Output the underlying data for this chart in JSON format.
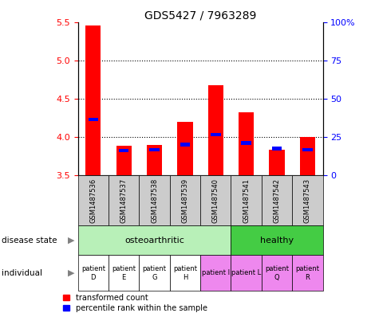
{
  "title": "GDS5427 / 7963289",
  "samples": [
    "GSM1487536",
    "GSM1487537",
    "GSM1487538",
    "GSM1487539",
    "GSM1487540",
    "GSM1487541",
    "GSM1487542",
    "GSM1487543"
  ],
  "red_values": [
    5.45,
    3.88,
    3.9,
    4.2,
    4.67,
    4.32,
    3.83,
    4.0
  ],
  "blue_values": [
    4.23,
    3.82,
    3.83,
    3.9,
    4.03,
    3.92,
    3.85,
    3.83
  ],
  "ymin": 3.5,
  "ymax": 5.5,
  "y_left_ticks": [
    3.5,
    4.0,
    4.5,
    5.0,
    5.5
  ],
  "y_right_ticks": [
    0,
    25,
    50,
    75,
    100
  ],
  "y_right_tick_labels": [
    "0",
    "25",
    "50",
    "75",
    "100%"
  ],
  "gridlines": [
    4.0,
    4.5,
    5.0
  ],
  "bar_width": 0.5,
  "sample_bg_color": "#cccccc",
  "disease_regions": [
    {
      "label": "osteoarthritic",
      "xstart": -0.5,
      "xend": 4.5,
      "color": "#b8f0b8"
    },
    {
      "label": "healthy",
      "xstart": 4.5,
      "xend": 7.5,
      "color": "#44cc44"
    }
  ],
  "individual_labels": [
    "patient\nD",
    "patient\nE",
    "patient\nG",
    "patient\nH",
    "patient I",
    "patient L",
    "patient\nQ",
    "patient\nR"
  ],
  "individual_colors": [
    "#ffffff",
    "#ffffff",
    "#ffffff",
    "#ffffff",
    "#ee88ee",
    "#ee88ee",
    "#ee88ee",
    "#ee88ee"
  ],
  "legend_red": "transformed count",
  "legend_blue": "percentile rank within the sample",
  "left_labels": [
    "disease state",
    "individual"
  ]
}
